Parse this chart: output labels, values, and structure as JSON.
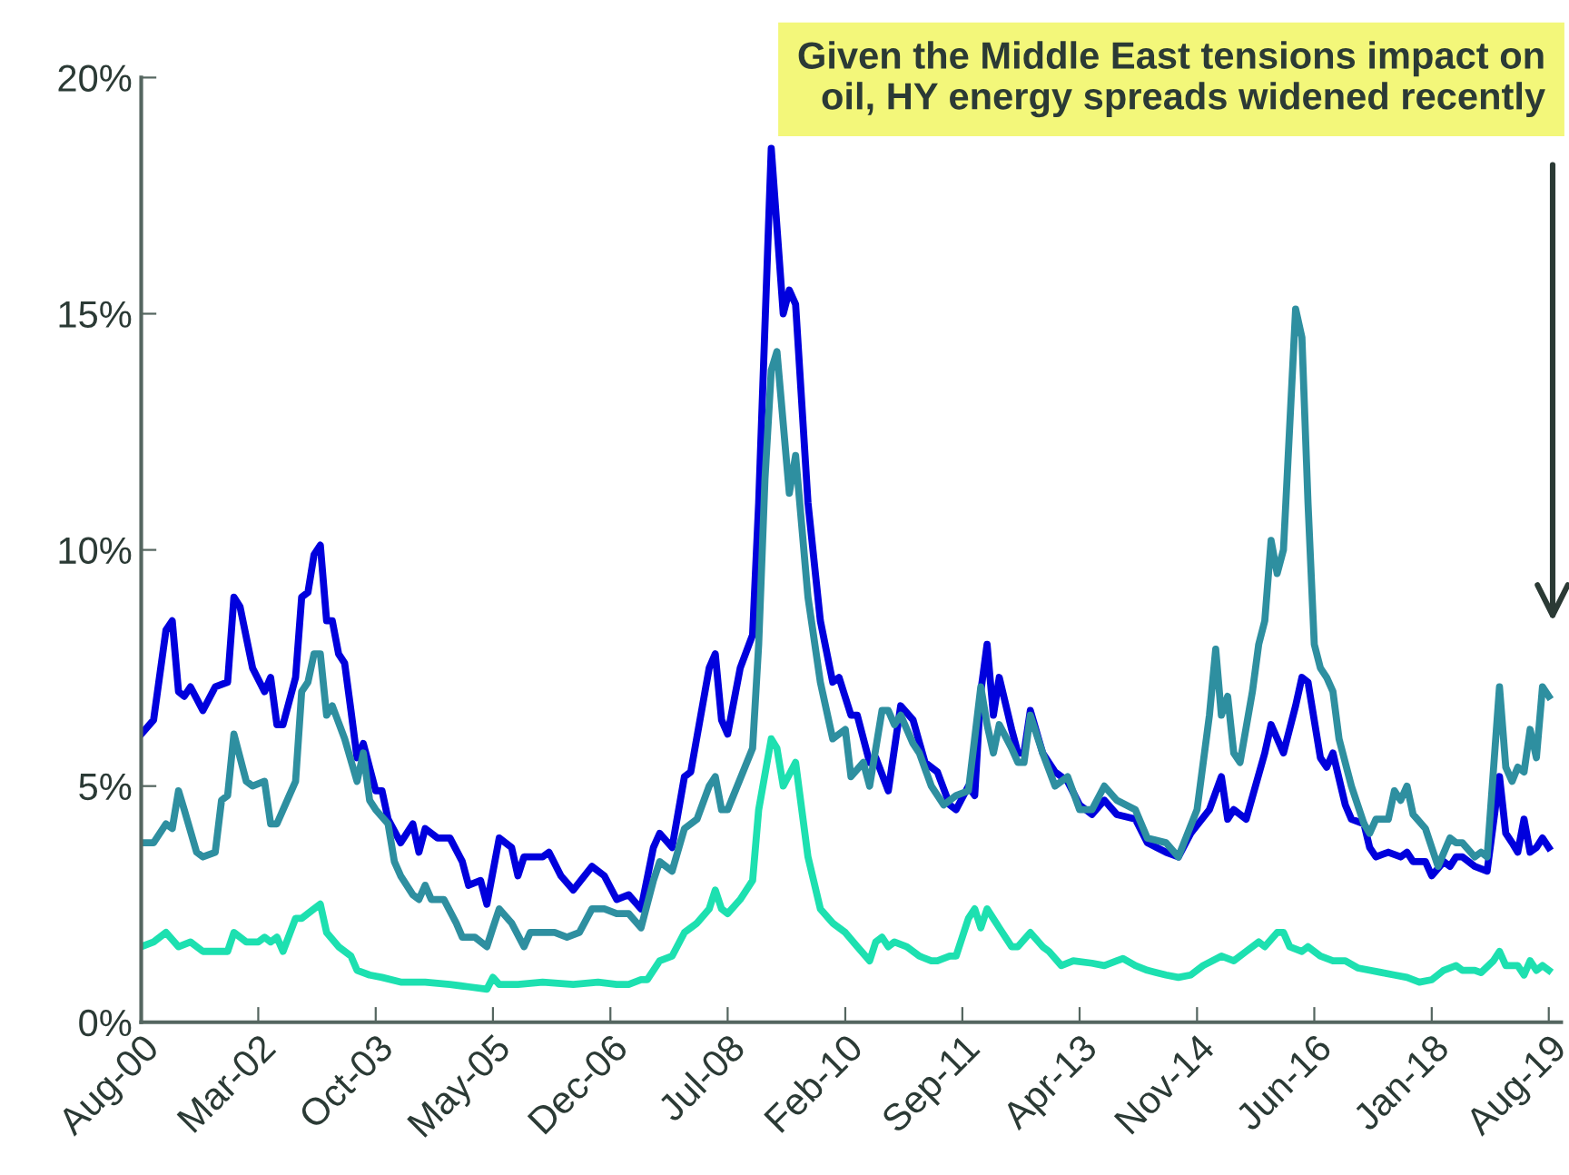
{
  "chart_data": {
    "type": "line",
    "x": [
      "2000-08",
      "2000-10",
      "2000-12",
      "2001-01",
      "2001-02",
      "2001-03",
      "2001-04",
      "2001-06",
      "2001-08",
      "2001-10",
      "2001-11",
      "2001-12",
      "2002-02",
      "2002-04",
      "2002-05",
      "2002-06",
      "2002-07",
      "2002-09",
      "2002-10",
      "2002-11",
      "2002-12",
      "2003-01",
      "2003-02",
      "2003-03",
      "2003-04",
      "2003-05",
      "2003-06",
      "2003-07",
      "2003-08",
      "2003-10",
      "2003-11",
      "2003-12",
      "2004-02",
      "2004-04",
      "2004-05",
      "2004-06",
      "2004-08",
      "2004-10",
      "2004-12",
      "2005-01",
      "2005-03",
      "2005-04",
      "2005-06",
      "2005-08",
      "2005-09",
      "2005-10",
      "2006-01",
      "2006-02",
      "2006-04",
      "2006-06",
      "2006-09",
      "2006-11",
      "2007-01",
      "2007-03",
      "2007-05",
      "2007-07",
      "2007-08",
      "2007-10",
      "2007-12",
      "2008-01",
      "2008-04",
      "2008-05",
      "2008-06",
      "2008-07",
      "2008-09",
      "2008-11",
      "2008-12",
      "2009-02",
      "2009-04",
      "2009-05",
      "2009-06",
      "2009-08",
      "2009-10",
      "2009-12",
      "2010-01",
      "2010-03",
      "2010-04",
      "2010-06",
      "2010-07",
      "2010-09",
      "2010-11",
      "2011-01",
      "2011-03",
      "2011-05",
      "2011-07",
      "2011-08",
      "2011-10",
      "2011-11",
      "2011-12",
      "2012-01",
      "2012-02",
      "2012-03",
      "2012-05",
      "2012-06",
      "2012-07",
      "2012-08",
      "2012-10",
      "2012-12",
      "2013-02",
      "2013-04",
      "2013-06",
      "2013-08",
      "2013-10",
      "2014-01",
      "2014-03",
      "2014-06",
      "2014-08",
      "2014-10",
      "2015-01",
      "2015-03",
      "2015-04",
      "2015-05",
      "2015-07",
      "2015-10",
      "2015-11",
      "2016-01",
      "2016-03",
      "2016-04",
      "2016-05",
      "2016-07",
      "2016-08",
      "2016-09",
      "2016-11",
      "2016-12",
      "2017-02",
      "2017-03",
      "2017-04",
      "2017-06",
      "2017-08",
      "2017-09",
      "2017-10",
      "2017-12",
      "2018-01",
      "2018-03",
      "2018-04",
      "2018-05",
      "2018-06",
      "2018-08",
      "2018-10",
      "2018-12",
      "2019-01",
      "2019-02",
      "2019-03",
      "2019-04",
      "2019-05",
      "2019-06",
      "2019-07",
      "2019-08"
    ],
    "series": [
      {
        "color": "#0000dd",
        "values": [
          6.1,
          6.4,
          8.3,
          8.5,
          7.0,
          6.9,
          7.1,
          6.6,
          7.1,
          7.2,
          9.0,
          8.8,
          7.5,
          7.0,
          7.3,
          6.3,
          6.3,
          7.3,
          9.0,
          9.1,
          9.9,
          10.1,
          8.5,
          8.5,
          7.8,
          7.6,
          6.6,
          5.6,
          5.9,
          4.9,
          4.9,
          4.3,
          3.8,
          4.2,
          3.6,
          4.1,
          3.9,
          3.9,
          3.4,
          2.9,
          3.0,
          2.5,
          3.9,
          3.7,
          3.1,
          3.5,
          3.5,
          3.6,
          3.1,
          2.8,
          3.3,
          3.1,
          2.6,
          2.7,
          2.4,
          3.7,
          4.0,
          3.7,
          5.2,
          5.3,
          7.5,
          7.8,
          6.4,
          6.1,
          7.5,
          8.2,
          11.0,
          18.5,
          15.0,
          15.5,
          15.2,
          11.0,
          8.5,
          7.2,
          7.3,
          6.5,
          6.5,
          5.5,
          5.6,
          4.9,
          6.7,
          6.4,
          5.5,
          5.3,
          4.6,
          4.5,
          5.0,
          4.8,
          7.0,
          8.0,
          6.5,
          7.3,
          6.2,
          5.7,
          5.7,
          6.6,
          5.7,
          5.3,
          5.1,
          4.6,
          4.4,
          4.7,
          4.4,
          4.3,
          3.8,
          3.6,
          3.5,
          4.0,
          4.5,
          5.2,
          4.3,
          4.5,
          4.3,
          5.7,
          6.3,
          5.7,
          6.7,
          7.3,
          7.2,
          5.6,
          5.4,
          5.7,
          4.6,
          4.3,
          4.2,
          3.7,
          3.5,
          3.6,
          3.5,
          3.6,
          3.4,
          3.4,
          3.1,
          3.4,
          3.3,
          3.5,
          3.5,
          3.3,
          3.2,
          5.2,
          4.0,
          3.8,
          3.6,
          4.3,
          3.6,
          3.7,
          3.9,
          3.7
        ]
      },
      {
        "color": "#2e8fa0",
        "x": [
          "2000-08",
          "2000-10",
          "2000-12",
          "2001-01",
          "2001-02",
          "2001-03",
          "2001-05",
          "2001-06",
          "2001-08",
          "2001-09",
          "2001-10",
          "2001-11",
          "2002-01",
          "2002-02",
          "2002-04",
          "2002-05",
          "2002-06",
          "2002-08",
          "2002-09",
          "2002-10",
          "2002-11",
          "2002-12",
          "2003-01",
          "2003-02",
          "2003-03",
          "2003-05",
          "2003-07",
          "2003-08",
          "2003-09",
          "2003-10",
          "2003-12",
          "2004-01",
          "2004-02",
          "2004-04",
          "2004-05",
          "2004-06",
          "2004-07",
          "2004-09",
          "2004-11",
          "2004-12",
          "2005-02",
          "2005-04",
          "2005-05",
          "2005-06",
          "2005-08",
          "2005-10",
          "2005-11",
          "2006-01",
          "2006-03",
          "2006-05",
          "2006-07",
          "2006-09",
          "2006-11",
          "2007-01",
          "2007-03",
          "2007-05",
          "2007-07",
          "2007-08",
          "2007-10",
          "2007-12",
          "2008-02",
          "2008-04",
          "2008-05",
          "2008-06",
          "2008-07",
          "2008-11",
          "2008-12",
          "2009-01",
          "2009-02",
          "2009-03",
          "2009-05",
          "2009-06",
          "2009-08",
          "2009-10",
          "2009-12",
          "2010-02",
          "2010-03",
          "2010-05",
          "2010-06",
          "2010-08",
          "2010-09",
          "2010-10",
          "2010-11",
          "2011-01",
          "2011-02",
          "2011-04",
          "2011-06",
          "2011-08",
          "2011-10",
          "2011-12",
          "2012-01",
          "2012-02",
          "2012-03",
          "2012-05",
          "2012-06",
          "2012-07",
          "2012-08",
          "2012-10",
          "2012-12",
          "2013-02",
          "2013-04",
          "2013-06",
          "2013-08",
          "2013-10",
          "2014-01",
          "2014-03",
          "2014-06",
          "2014-08",
          "2014-11",
          "2015-01",
          "2015-02",
          "2015-03",
          "2015-04",
          "2015-05",
          "2015-06",
          "2015-08",
          "2015-09",
          "2015-10",
          "2015-11",
          "2015-12",
          "2016-01",
          "2016-03",
          "2016-04",
          "2016-05",
          "2016-06",
          "2016-07",
          "2016-08",
          "2016-09",
          "2016-10",
          "2016-12",
          "2017-02",
          "2017-03",
          "2017-04",
          "2017-06",
          "2017-07",
          "2017-08",
          "2017-09",
          "2017-10",
          "2017-12",
          "2018-02",
          "2018-04",
          "2018-05",
          "2018-06",
          "2018-08",
          "2018-09",
          "2018-10",
          "2018-12",
          "2019-01",
          "2019-02",
          "2019-03",
          "2019-04",
          "2019-05",
          "2019-06",
          "2019-07",
          "2019-08"
        ],
        "values": [
          3.8,
          3.8,
          4.2,
          4.1,
          4.9,
          4.5,
          3.6,
          3.5,
          3.6,
          4.7,
          4.8,
          6.1,
          5.1,
          5.0,
          5.1,
          4.2,
          4.2,
          4.8,
          5.1,
          7.0,
          7.2,
          7.8,
          7.8,
          6.5,
          6.7,
          6.0,
          5.1,
          5.7,
          4.7,
          4.5,
          4.2,
          3.4,
          3.1,
          2.7,
          2.6,
          2.9,
          2.6,
          2.6,
          2.1,
          1.8,
          1.8,
          1.6,
          2.0,
          2.4,
          2.1,
          1.6,
          1.9,
          1.9,
          1.9,
          1.8,
          1.9,
          2.4,
          2.4,
          2.3,
          2.3,
          2.0,
          3.0,
          3.4,
          3.2,
          4.1,
          4.3,
          5.0,
          5.2,
          4.5,
          4.5,
          5.8,
          8.0,
          11.5,
          13.8,
          14.2,
          11.2,
          12.0,
          9.0,
          7.2,
          6.0,
          6.2,
          5.2,
          5.5,
          5.0,
          6.6,
          6.6,
          6.3,
          6.5,
          5.9,
          5.7,
          5.0,
          4.6,
          4.8,
          4.9,
          7.1,
          6.3,
          5.7,
          6.3,
          5.8,
          5.5,
          5.5,
          6.5,
          5.7,
          5.0,
          5.2,
          4.5,
          4.5,
          5.0,
          4.7,
          4.5,
          3.9,
          3.8,
          3.5,
          4.5,
          6.5,
          7.9,
          6.5,
          6.9,
          5.7,
          5.5,
          7.0,
          8.0,
          8.5,
          10.2,
          9.5,
          10.0,
          15.1,
          14.5,
          11.0,
          8.0,
          7.5,
          7.3,
          7.0,
          6.0,
          5.0,
          4.2,
          4.0,
          4.3,
          4.3,
          4.9,
          4.7,
          5.0,
          4.4,
          4.1,
          3.3,
          3.9,
          3.8,
          3.8,
          3.5,
          3.6,
          3.5,
          7.1,
          5.4,
          5.1,
          5.4,
          5.3,
          6.2,
          5.6,
          7.1,
          6.9
        ]
      },
      {
        "color": "#1de0b0",
        "x": [
          "2000-08",
          "2000-10",
          "2000-12",
          "2001-02",
          "2001-04",
          "2001-06",
          "2001-08",
          "2001-10",
          "2001-11",
          "2002-01",
          "2002-03",
          "2002-04",
          "2002-05",
          "2002-06",
          "2002-07",
          "2002-09",
          "2002-10",
          "2002-12",
          "2003-01",
          "2003-02",
          "2003-04",
          "2003-06",
          "2003-07",
          "2003-09",
          "2003-11",
          "2004-02",
          "2004-06",
          "2004-10",
          "2005-01",
          "2005-04",
          "2005-05",
          "2005-06",
          "2005-09",
          "2006-01",
          "2006-06",
          "2006-10",
          "2007-01",
          "2007-03",
          "2007-05",
          "2007-06",
          "2007-08",
          "2007-10",
          "2007-12",
          "2008-02",
          "2008-04",
          "2008-05",
          "2008-06",
          "2008-07",
          "2008-09",
          "2008-11",
          "2008-12",
          "2009-02",
          "2009-03",
          "2009-04",
          "2009-06",
          "2009-08",
          "2009-10",
          "2009-12",
          "2010-02",
          "2010-04",
          "2010-06",
          "2010-07",
          "2010-08",
          "2010-09",
          "2010-10",
          "2010-12",
          "2011-02",
          "2011-04",
          "2011-05",
          "2011-07",
          "2011-08",
          "2011-10",
          "2011-11",
          "2011-12",
          "2012-01",
          "2012-03",
          "2012-05",
          "2012-06",
          "2012-08",
          "2012-10",
          "2012-11",
          "2013-01",
          "2013-03",
          "2013-06",
          "2013-08",
          "2013-10",
          "2013-11",
          "2014-01",
          "2014-03",
          "2014-06",
          "2014-08",
          "2014-10",
          "2014-12",
          "2015-03",
          "2015-05",
          "2015-07",
          "2015-09",
          "2015-10",
          "2015-12",
          "2016-01",
          "2016-02",
          "2016-04",
          "2016-05",
          "2016-07",
          "2016-09",
          "2016-11",
          "2017-01",
          "2017-03",
          "2017-05",
          "2017-07",
          "2017-09",
          "2017-11",
          "2018-01",
          "2018-03",
          "2018-05",
          "2018-06",
          "2018-08",
          "2018-09",
          "2018-11",
          "2018-12",
          "2019-01",
          "2019-03",
          "2019-04",
          "2019-05",
          "2019-06",
          "2019-07",
          "2019-08"
        ],
        "values": [
          1.6,
          1.7,
          1.9,
          1.6,
          1.7,
          1.5,
          1.5,
          1.5,
          1.9,
          1.7,
          1.7,
          1.8,
          1.7,
          1.8,
          1.5,
          2.2,
          2.2,
          2.4,
          2.5,
          1.9,
          1.6,
          1.4,
          1.1,
          1.0,
          0.95,
          0.85,
          0.85,
          0.8,
          0.75,
          0.7,
          0.95,
          0.8,
          0.8,
          0.85,
          0.8,
          0.85,
          0.8,
          0.8,
          0.9,
          0.9,
          1.3,
          1.4,
          1.9,
          2.1,
          2.4,
          2.8,
          2.4,
          2.3,
          2.6,
          3.0,
          4.5,
          6.0,
          5.8,
          5.0,
          5.5,
          3.5,
          2.4,
          2.1,
          1.9,
          1.6,
          1.3,
          1.7,
          1.8,
          1.6,
          1.7,
          1.6,
          1.4,
          1.3,
          1.3,
          1.4,
          1.4,
          2.2,
          2.4,
          2.0,
          2.4,
          2.0,
          1.6,
          1.6,
          1.9,
          1.6,
          1.5,
          1.2,
          1.3,
          1.25,
          1.2,
          1.3,
          1.35,
          1.2,
          1.1,
          1.0,
          0.95,
          1.0,
          1.2,
          1.4,
          1.3,
          1.5,
          1.7,
          1.6,
          1.9,
          1.9,
          1.6,
          1.5,
          1.6,
          1.4,
          1.3,
          1.3,
          1.15,
          1.1,
          1.05,
          1.0,
          0.95,
          0.85,
          0.9,
          1.1,
          1.2,
          1.1,
          1.1,
          1.05,
          1.3,
          1.5,
          1.2,
          1.2,
          1.0,
          1.3,
          1.1,
          1.2,
          1.1
        ]
      }
    ],
    "xlim": [
      "2000-08",
      "2019-10"
    ],
    "xticks": [
      {
        "value": "2000-08",
        "label": "Aug-00"
      },
      {
        "value": "2002-03",
        "label": "Mar-02"
      },
      {
        "value": "2003-10",
        "label": "Oct-03"
      },
      {
        "value": "2005-05",
        "label": "May-05"
      },
      {
        "value": "2006-12",
        "label": "Dec-06"
      },
      {
        "value": "2008-07",
        "label": "Jul-08"
      },
      {
        "value": "2010-02",
        "label": "Feb-10"
      },
      {
        "value": "2011-09",
        "label": "Sep-11"
      },
      {
        "value": "2013-04",
        "label": "Apr-13"
      },
      {
        "value": "2014-11",
        "label": "Nov-14"
      },
      {
        "value": "2016-06",
        "label": "Jun-16"
      },
      {
        "value": "2018-01",
        "label": "Jan-18"
      },
      {
        "value": "2019-08",
        "label": "Aug-19"
      }
    ],
    "ylim": [
      0,
      20
    ],
    "yticks": [
      {
        "value": 0,
        "label": "0%"
      },
      {
        "value": 5,
        "label": "5%"
      },
      {
        "value": 10,
        "label": "10%"
      },
      {
        "value": 15,
        "label": "15%"
      },
      {
        "value": 20,
        "label": "20%"
      }
    ],
    "grid": false,
    "marker": "none",
    "line_style": "solid",
    "annotations": [
      "Given the Middle East tensions impact on\noil, HY energy spreads widened recently"
    ]
  }
}
